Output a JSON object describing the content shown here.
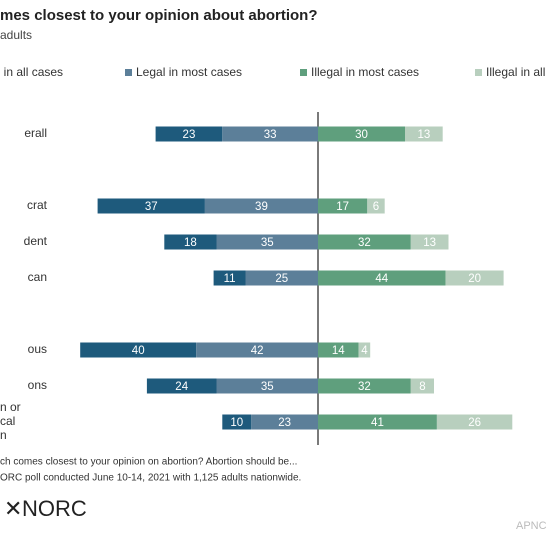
{
  "chart_data": {
    "type": "diverging-bar",
    "title": "mes closest to your opinion about abortion?",
    "subtitle": "adults",
    "categories": [
      "erall",
      "crat",
      "dent",
      "can",
      "ous",
      "ons",
      [
        "n or",
        "cal",
        "n"
      ]
    ],
    "series": [
      {
        "name": "al in all cases",
        "color": "#1e5a7c",
        "values": [
          23,
          37,
          18,
          11,
          40,
          24,
          10
        ]
      },
      {
        "name": "Legal in most cases",
        "color": "#5c7f99",
        "values": [
          33,
          39,
          35,
          25,
          42,
          35,
          23
        ]
      },
      {
        "name": "Illegal in most cases",
        "color": "#5f9f7d",
        "values": [
          30,
          17,
          32,
          44,
          14,
          32,
          41
        ]
      },
      {
        "name": "Illegal in all",
        "color": "#b8cfbe",
        "values": [
          13,
          6,
          13,
          20,
          4,
          8,
          26
        ]
      }
    ],
    "footnotes": [
      "ch comes closest to your opinion on abortion? Abortion should be...",
      "ORC poll conducted June 10-14, 2021 with 1,125 adults nationwide."
    ],
    "logo": "NORC",
    "source": "APNC"
  }
}
